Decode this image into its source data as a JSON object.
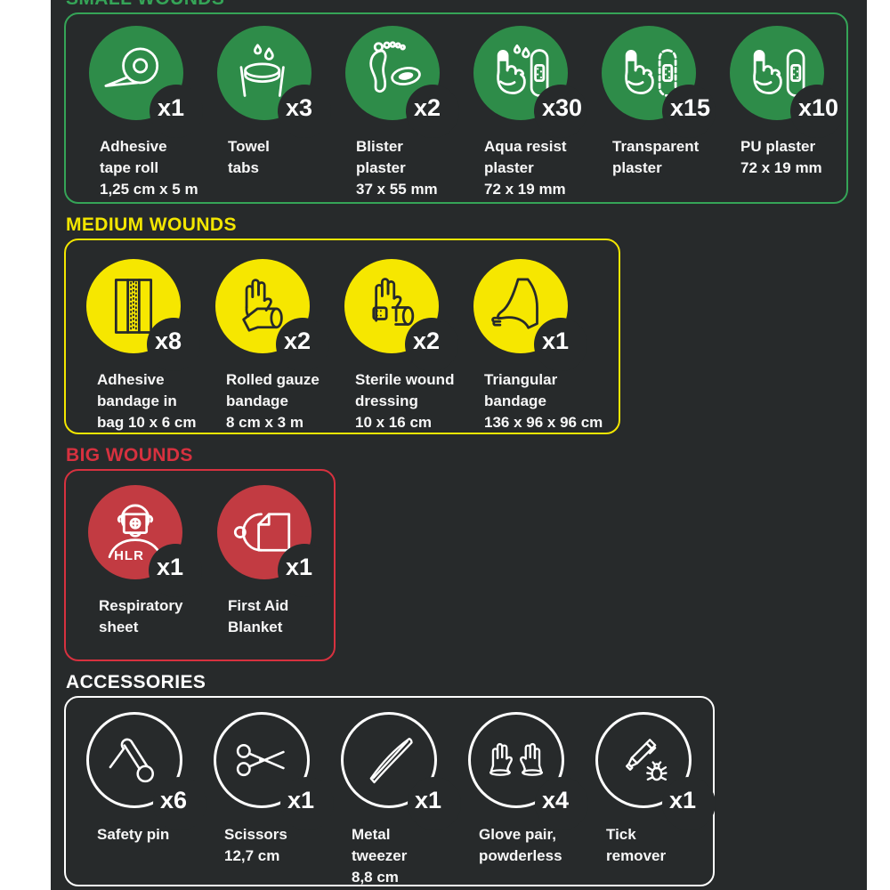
{
  "page": {
    "page_background": "#ffffff",
    "panel_background": "#272a2b"
  },
  "sections": [
    {
      "id": "small-wounds",
      "title": "SMALL WOUNDS",
      "accent_color": "#35a457",
      "circle_color": "#2e8c49",
      "icon_color": "#ffffff",
      "items": [
        {
          "icon": "adhesive-tape-roll-icon",
          "count": "x1",
          "label": "Adhesive\ntape roll\n1,25 cm x 5 m"
        },
        {
          "icon": "towel-tabs-icon",
          "count": "x3",
          "label": "Towel\ntabs"
        },
        {
          "icon": "blister-plaster-icon",
          "count": "x2",
          "label": "Blister\nplaster\n37 x 55 mm"
        },
        {
          "icon": "aqua-resist-plaster-icon",
          "count": "x30",
          "label": "Aqua resist\nplaster\n72 x 19 mm"
        },
        {
          "icon": "transparent-plaster-icon",
          "count": "x15",
          "label": "Transparent\nplaster"
        },
        {
          "icon": "pu-plaster-icon",
          "count": "x10",
          "label": "PU plaster\n72 x 19 mm"
        }
      ]
    },
    {
      "id": "medium-wounds",
      "title": "MEDIUM WOUNDS",
      "accent_color": "#f3e600",
      "circle_color": "#f6e700",
      "icon_color": "#272a2b",
      "items": [
        {
          "icon": "adhesive-bandage-bag-icon",
          "count": "x8",
          "label": "Adhesive\nbandage in\nbag 10 x 6 cm"
        },
        {
          "icon": "rolled-gauze-icon",
          "count": "x2",
          "label": "Rolled gauze\nbandage\n8 cm x 3 m"
        },
        {
          "icon": "sterile-dressing-icon",
          "count": "x2",
          "label": "Sterile wound\ndressing\n10 x 16 cm"
        },
        {
          "icon": "triangular-bandage-icon",
          "count": "x1",
          "label": "Triangular\nbandage\n136 x 96 x 96 cm"
        }
      ]
    },
    {
      "id": "big-wounds",
      "title": "BIG WOUNDS",
      "accent_color": "#d7313f",
      "circle_color": "#c23b42",
      "icon_color": "#ffffff",
      "items": [
        {
          "icon": "respiratory-sheet-icon",
          "count": "x1",
          "label": "Respiratory\nsheet",
          "icon_text": "HLR"
        },
        {
          "icon": "first-aid-blanket-icon",
          "count": "x1",
          "label": "First Aid\nBlanket"
        }
      ]
    },
    {
      "id": "accessories",
      "title": "ACCESSORIES",
      "accent_color": "#ffffff",
      "circle_color": "transparent",
      "icon_color": "#ffffff",
      "ring": true,
      "items": [
        {
          "icon": "safety-pin-icon",
          "count": "x6",
          "label": "Safety pin"
        },
        {
          "icon": "scissors-icon",
          "count": "x1",
          "label": "Scissors\n12,7 cm"
        },
        {
          "icon": "metal-tweezer-icon",
          "count": "x1",
          "label": "Metal\ntweezer\n8,8 cm"
        },
        {
          "icon": "glove-pair-icon",
          "count": "x4",
          "label": "Glove pair,\npowderless"
        },
        {
          "icon": "tick-remover-icon",
          "count": "x1",
          "label": "Tick\nremover"
        }
      ]
    }
  ]
}
